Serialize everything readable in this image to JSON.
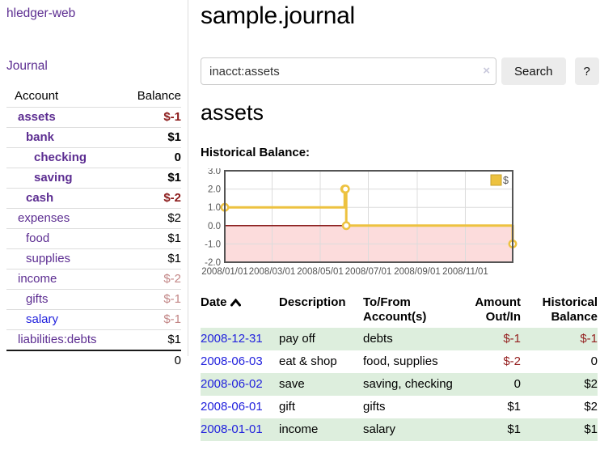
{
  "colors": {
    "link_purple": "#5c2d91",
    "link_blue": "#2222dd",
    "negative_strong": "#8b1a1a",
    "negative_light": "#c28686",
    "negative_table": "#941f1f",
    "row_stripe_green": "#ddeedd",
    "series_gold": "#edc240",
    "negative_region_pink": "#fcdcdc",
    "zero_line_red": "#7b0000",
    "chart_border_gray": "#545454"
  },
  "sidebar": {
    "app_title": "hledger-web",
    "journal_link": "Journal",
    "accounts_table": {
      "headers": {
        "account": "Account",
        "balance": "Balance"
      },
      "rows": [
        {
          "account": "assets",
          "indent": 1,
          "bold": true,
          "balance": "$-1",
          "negative": "strong"
        },
        {
          "account": "bank",
          "indent": 2,
          "bold": true,
          "balance": "$1"
        },
        {
          "account": "checking",
          "indent": 3,
          "bold": true,
          "balance": "0"
        },
        {
          "account": "saving",
          "indent": 3,
          "bold": true,
          "balance": "$1"
        },
        {
          "account": "cash",
          "indent": 2,
          "bold": true,
          "balance": "$-2",
          "negative": "strong"
        },
        {
          "account": "expenses",
          "indent": 1,
          "bold": false,
          "balance": "$2"
        },
        {
          "account": "food",
          "indent": 2,
          "bold": false,
          "balance": "$1"
        },
        {
          "account": "supplies",
          "indent": 2,
          "bold": false,
          "balance": "$1"
        },
        {
          "account": "income",
          "indent": 1,
          "bold": false,
          "balance": "$-2",
          "negative": "light"
        },
        {
          "account": "gifts",
          "indent": 2,
          "bold": false,
          "balance": "$-1",
          "negative": "light"
        },
        {
          "account": "salary",
          "indent": 2,
          "bold": false,
          "balance": "$-1",
          "negative": "light",
          "unvisited": true
        },
        {
          "account": "liabilities:debts",
          "indent": 1,
          "bold": false,
          "balance": "$1"
        }
      ],
      "total": "0"
    }
  },
  "header": {
    "title": "sample.journal"
  },
  "search": {
    "value": "inacct:assets",
    "clear_icon": "×",
    "search_button": "Search",
    "help_button": "?"
  },
  "main": {
    "account_heading": "assets",
    "chart_label": "Historical Balance:"
  },
  "chart_data": {
    "type": "line",
    "title": "Historical Balance:",
    "step": true,
    "legend": "$",
    "legend_position": "top-right",
    "grid": true,
    "xlim_days": [
      0,
      365
    ],
    "ylim": [
      -2,
      3
    ],
    "yticks": [
      3.0,
      2.0,
      1.0,
      0.0,
      -1.0,
      -2.0
    ],
    "xticks": [
      {
        "day": 0,
        "label": "2008/01/01"
      },
      {
        "day": 60,
        "label": "2008/03/01"
      },
      {
        "day": 121,
        "label": "2008/05/01"
      },
      {
        "day": 182,
        "label": "2008/07/01"
      },
      {
        "day": 244,
        "label": "2008/09/01"
      },
      {
        "day": 305,
        "label": "2008/11/01"
      }
    ],
    "series": [
      {
        "name": "$",
        "color": "#edc240",
        "points": [
          {
            "date": "2008-01-01",
            "day": 0,
            "value": 1
          },
          {
            "date": "2008-06-01",
            "day": 152,
            "value": 2
          },
          {
            "date": "2008-06-02",
            "day": 153,
            "value": 2
          },
          {
            "date": "2008-06-03",
            "day": 154,
            "value": 0
          },
          {
            "date": "2008-12-31",
            "day": 365,
            "value": -1
          }
        ]
      }
    ],
    "negative_region_color": "#fcdcdc",
    "zero_line_color": "#7b0000"
  },
  "register": {
    "headers": {
      "date": "Date",
      "description": "Description",
      "accounts": "To/From Account(s)",
      "amount": "Amount Out/In",
      "balance": "Historical Balance"
    },
    "sort": {
      "column": "date",
      "direction": "ascending"
    },
    "rows": [
      {
        "date": "2008-12-31",
        "description": "pay off",
        "accounts": "debts",
        "amount": "$-1",
        "amount_negative": true,
        "balance": "$-1",
        "balance_negative": true,
        "shaded": true
      },
      {
        "date": "2008-06-03",
        "description": "eat & shop",
        "accounts": "food, supplies",
        "amount": "$-2",
        "amount_negative": true,
        "balance": "0",
        "balance_negative": false,
        "shaded": false
      },
      {
        "date": "2008-06-02",
        "description": "save",
        "accounts": "saving, checking",
        "amount": "0",
        "amount_negative": false,
        "balance": "$2",
        "balance_negative": false,
        "shaded": true
      },
      {
        "date": "2008-06-01",
        "description": "gift",
        "accounts": "gifts",
        "amount": "$1",
        "amount_negative": false,
        "balance": "$2",
        "balance_negative": false,
        "shaded": false
      },
      {
        "date": "2008-01-01",
        "description": "income",
        "accounts": "salary",
        "amount": "$1",
        "amount_negative": false,
        "balance": "$1",
        "balance_negative": false,
        "shaded": true
      }
    ]
  }
}
